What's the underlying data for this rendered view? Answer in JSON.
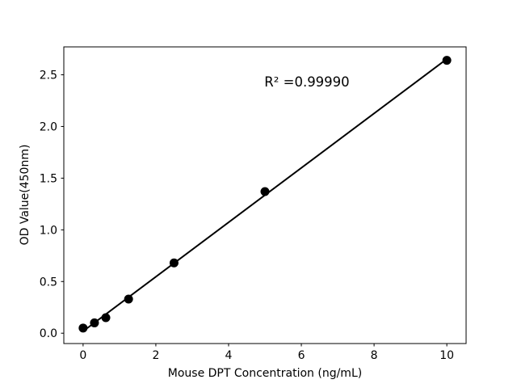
{
  "chart_data": {
    "type": "scatter",
    "title": "",
    "xlabel": "Mouse DPT Concentration (ng/mL)",
    "ylabel": "OD Value(450nm)",
    "x": [
      0,
      0.3125,
      0.625,
      1.25,
      2.5,
      5,
      10
    ],
    "y": [
      0.05,
      0.1,
      0.15,
      0.33,
      0.68,
      1.37,
      2.64
    ],
    "xticks": [
      0,
      2,
      4,
      6,
      8,
      10
    ],
    "yticks": [
      0.0,
      0.5,
      1.0,
      1.5,
      2.0,
      2.5
    ],
    "xlim": [
      -0.53,
      10.53
    ],
    "ylim": [
      -0.1,
      2.77
    ],
    "grid": false,
    "legend": "none",
    "fit_line": true,
    "annotation": {
      "text": "R² =0.99990"
    },
    "colors": {
      "marker": "#000000",
      "line": "#000000",
      "axes": "#000000",
      "background": "#ffffff"
    }
  }
}
